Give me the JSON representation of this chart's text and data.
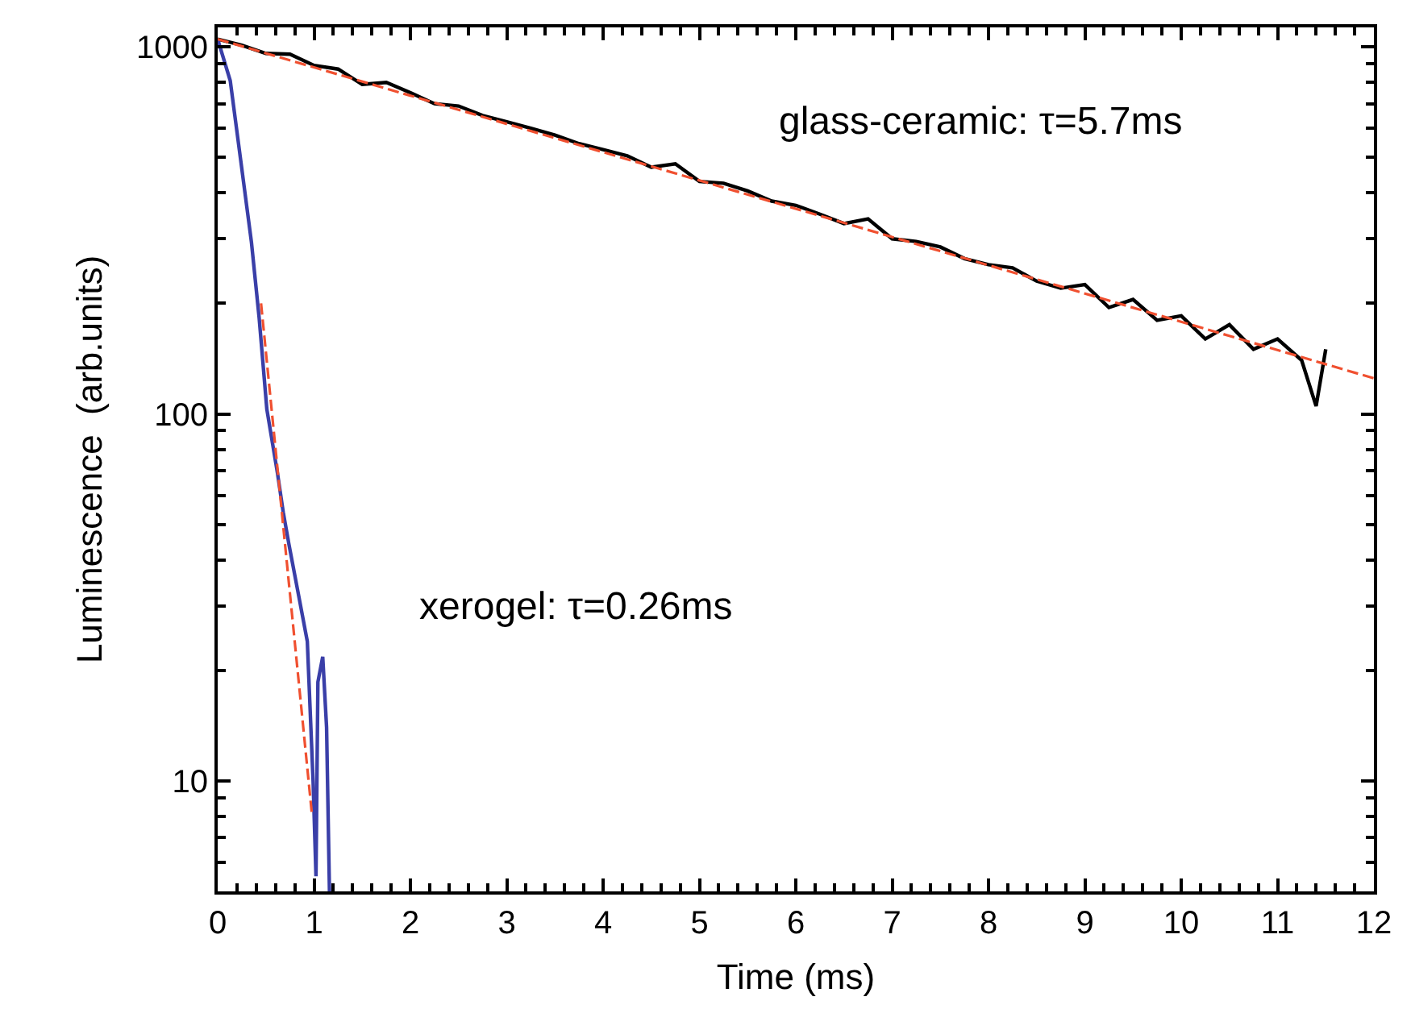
{
  "chart_data": {
    "type": "line",
    "xlabel": "Time (ms)",
    "ylabel": "Luminescence  (arb.units)",
    "log": "y",
    "marker": "none",
    "xlim": [
      0,
      12
    ],
    "xticks": [
      0,
      1,
      2,
      3,
      4,
      5,
      6,
      7,
      8,
      9,
      10,
      11,
      12
    ],
    "ylim": [
      5,
      1130
    ],
    "yticks": [
      10,
      100,
      1000
    ],
    "series": [
      {
        "color": "#000000",
        "line_style": "solid",
        "x": [
          0,
          0.25,
          0.5,
          0.75,
          1,
          1.25,
          1.5,
          1.75,
          2,
          2.25,
          2.5,
          2.75,
          3,
          3.25,
          3.5,
          3.75,
          4,
          4.25,
          4.5,
          4.75,
          5,
          5.25,
          5.5,
          5.75,
          6,
          6.25,
          6.5,
          6.75,
          7,
          7.25,
          7.5,
          7.75,
          8,
          8.25,
          8.5,
          8.75,
          9,
          9.25,
          9.5,
          9.75,
          10,
          10.25,
          10.5,
          10.75,
          11,
          11.25,
          11.4,
          11.5
        ],
        "values": [
          1050,
          1010,
          960,
          955,
          890,
          870,
          790,
          800,
          750,
          700,
          690,
          650,
          625,
          600,
          575,
          545,
          525,
          505,
          470,
          480,
          430,
          425,
          405,
          380,
          370,
          350,
          330,
          340,
          300,
          295,
          285,
          265,
          255,
          250,
          230,
          220,
          225,
          195,
          205,
          180,
          185,
          160,
          175,
          150,
          160,
          140,
          105,
          150
        ]
      },
      {
        "color": "#3a3fa8",
        "line_style": "solid",
        "x": [
          0,
          0.13,
          0.24,
          0.35,
          0.43,
          0.51,
          0.62,
          0.68,
          0.74,
          0.85,
          0.93,
          0.99,
          1.02,
          1.04,
          1.09,
          1.13,
          1.16
        ],
        "values": [
          1050,
          809,
          488,
          294,
          183,
          103,
          69,
          54,
          44,
          31,
          24,
          10,
          5.5,
          18.6,
          21.8,
          14,
          5
        ]
      },
      {
        "color": "#f05030",
        "line_style": "dashed",
        "x": [
          0,
          12
        ],
        "values": [
          1050,
          125
        ]
      },
      {
        "color": "#f05030",
        "line_style": "dashed",
        "x": [
          0.45,
          0.98
        ],
        "values": [
          200,
          8
        ]
      }
    ],
    "annotations": [
      "glass-ceramic: τ=5.7ms",
      "xerogel: τ=0.26ms"
    ]
  }
}
